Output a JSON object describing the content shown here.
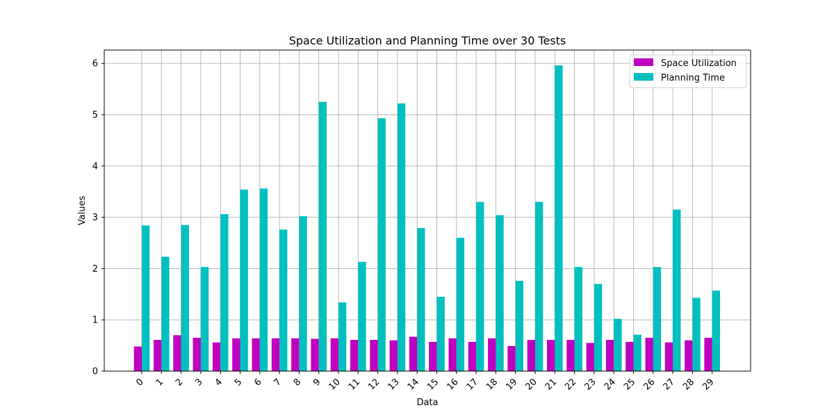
{
  "colors": {
    "space_utilization": "#bf00bf",
    "planning_time": "#00bfbf",
    "grid": "#b0b0b0",
    "axes": "#000000"
  },
  "chart_data": {
    "type": "bar",
    "title": "Space Utilization and Planning Time over 30 Tests",
    "xlabel": "Data",
    "ylabel": "Values",
    "categories": [
      "0",
      "1",
      "2",
      "3",
      "4",
      "5",
      "6",
      "7",
      "8",
      "9",
      "10",
      "11",
      "12",
      "13",
      "14",
      "15",
      "16",
      "17",
      "18",
      "19",
      "20",
      "21",
      "22",
      "23",
      "24",
      "25",
      "26",
      "27",
      "28",
      "29"
    ],
    "series": [
      {
        "name": "Space Utilization",
        "values": [
          0.48,
          0.61,
          0.7,
          0.65,
          0.56,
          0.64,
          0.64,
          0.64,
          0.64,
          0.63,
          0.64,
          0.61,
          0.61,
          0.6,
          0.67,
          0.57,
          0.64,
          0.57,
          0.64,
          0.49,
          0.61,
          0.61,
          0.61,
          0.55,
          0.61,
          0.57,
          0.65,
          0.56,
          0.6,
          0.65
        ]
      },
      {
        "name": "Planning Time",
        "values": [
          2.84,
          2.23,
          2.85,
          2.03,
          3.06,
          3.54,
          3.56,
          2.76,
          3.02,
          5.25,
          1.34,
          2.13,
          4.93,
          5.22,
          2.79,
          1.45,
          2.6,
          3.3,
          3.04,
          1.76,
          3.3,
          5.96,
          2.03,
          1.7,
          1.02,
          0.71,
          2.03,
          3.15,
          1.43,
          1.57
        ]
      }
    ],
    "ylim": [
      0,
      6.26
    ],
    "yticks": [
      "0",
      "1",
      "2",
      "3",
      "4",
      "5",
      "6"
    ],
    "grid": true,
    "legend_position": "top-right"
  }
}
